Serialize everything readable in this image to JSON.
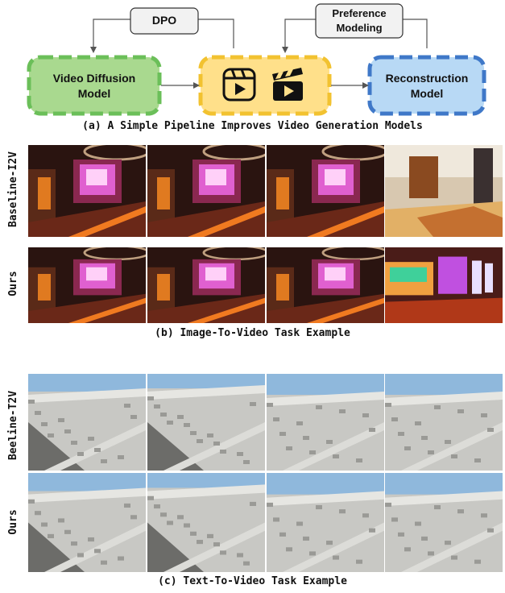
{
  "diagram": {
    "dpo_label": "DPO",
    "preference_label_line1": "Preference",
    "preference_label_line2": "Modeling",
    "video_diffusion_line1": "Video Diffusion",
    "video_diffusion_line2": "Model",
    "reconstruction_line1": "Reconstruction",
    "reconstruction_line2": "Model",
    "icons": [
      "video-reel-icon",
      "clapperboard-icon"
    ],
    "colors": {
      "diffusion_fill": "#a9d98f",
      "diffusion_border": "#6bbf59",
      "video_fill": "#ffe08a",
      "video_border": "#f2c230",
      "reconstruction_fill": "#b8d9f5",
      "reconstruction_border": "#3f78c8",
      "label_fill": "#f2f2f2",
      "label_border": "#333333"
    }
  },
  "captions": {
    "a": "(a) A Simple Pipeline Improves Video Generation Models",
    "b": "(b) Image-To-Video Task Example",
    "c": "(c) Text-To-Video Task Example"
  },
  "i2v": {
    "row_labels": [
      "Baseline-I2V",
      "Ours"
    ]
  },
  "t2v": {
    "row_labels": [
      "Beeline-T2V",
      "Ours"
    ]
  }
}
